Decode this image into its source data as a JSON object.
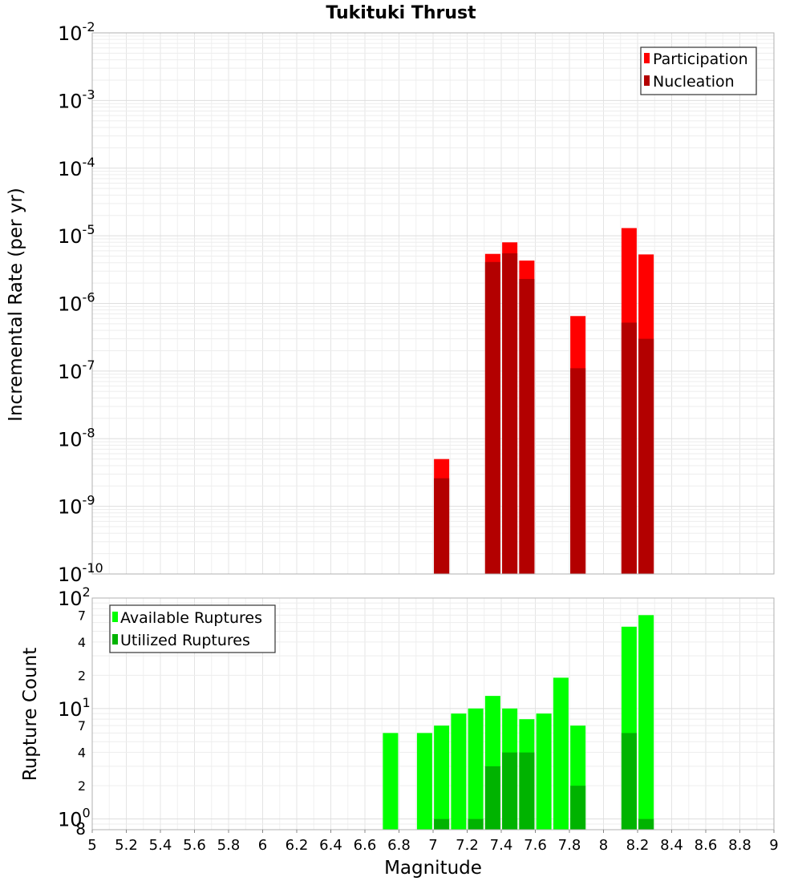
{
  "title": "Tukituki Thrust",
  "xlabel": "Magnitude",
  "chart_data": [
    {
      "type": "bar",
      "id": "incremental-rate",
      "title": "Tukituki Thrust",
      "ylabel": "Incremental Rate (per yr)",
      "y_scale": "log",
      "ylim": [
        1e-10,
        0.01
      ],
      "y_tick_exponents": [
        -10,
        -9,
        -8,
        -7,
        -6,
        -5,
        -4,
        -3,
        -2
      ],
      "xlim": [
        5,
        9
      ],
      "grid": true,
      "legend_position": "top-right",
      "series": [
        {
          "name": "Participation",
          "color": "#ff0000",
          "x": [
            7.05,
            7.35,
            7.45,
            7.55,
            7.85,
            8.15,
            8.25
          ],
          "values": [
            5e-09,
            5.4e-06,
            8e-06,
            4.3e-06,
            6.5e-07,
            1.3e-05,
            5.3e-06
          ]
        },
        {
          "name": "Nucleation",
          "color": "#b30000",
          "x": [
            7.05,
            7.35,
            7.45,
            7.55,
            7.85,
            8.15,
            8.25
          ],
          "values": [
            2.6e-09,
            4.1e-06,
            5.5e-06,
            2.3e-06,
            1.1e-07,
            5.2e-07,
            3e-07
          ]
        }
      ]
    },
    {
      "type": "bar",
      "id": "rupture-count",
      "ylabel": "Rupture Count",
      "y_scale": "log",
      "ylim": [
        0.8,
        100
      ],
      "xlabel": "Magnitude",
      "xlim": [
        5,
        9
      ],
      "x_ticks": [
        "5",
        "5.2",
        "5.4",
        "5.6",
        "5.8",
        "6",
        "6.2",
        "6.4",
        "6.6",
        "6.8",
        "7",
        "7.2",
        "7.4",
        "7.6",
        "7.8",
        "8",
        "8.2",
        "8.4",
        "8.6",
        "8.8",
        "9"
      ],
      "y_major_ticks": [
        {
          "value": 1,
          "label": "10",
          "exp": "0"
        },
        {
          "value": 10,
          "label": "10",
          "exp": "1"
        },
        {
          "value": 100,
          "label": "10",
          "exp": "2"
        }
      ],
      "y_minor_ticks": [
        {
          "value": 0.8,
          "label": "8"
        },
        {
          "value": 2,
          "label": "2"
        },
        {
          "value": 4,
          "label": "4"
        },
        {
          "value": 7,
          "label": "7"
        },
        {
          "value": 20,
          "label": "2"
        },
        {
          "value": 40,
          "label": "4"
        },
        {
          "value": 70,
          "label": "7"
        }
      ],
      "grid": true,
      "legend_position": "top-left",
      "series": [
        {
          "name": "Available Ruptures",
          "color": "#00ff00",
          "x": [
            6.75,
            6.95,
            7.05,
            7.15,
            7.25,
            7.35,
            7.45,
            7.55,
            7.65,
            7.75,
            7.85,
            8.15,
            8.25
          ],
          "values": [
            6,
            6,
            7,
            9,
            10,
            13,
            10,
            8,
            9,
            19,
            7,
            55,
            70
          ]
        },
        {
          "name": "Utilized Ruptures",
          "color": "#00b300",
          "x": [
            7.05,
            7.25,
            7.35,
            7.45,
            7.55,
            7.85,
            8.15,
            8.25
          ],
          "values": [
            1,
            1,
            3,
            4,
            4,
            2,
            6,
            1
          ]
        }
      ]
    }
  ]
}
